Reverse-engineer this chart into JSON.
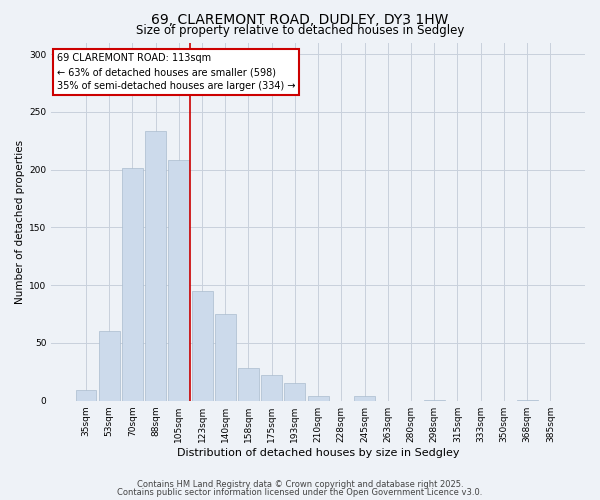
{
  "title": "69, CLAREMONT ROAD, DUDLEY, DY3 1HW",
  "subtitle": "Size of property relative to detached houses in Sedgley",
  "xlabel": "Distribution of detached houses by size in Sedgley",
  "ylabel": "Number of detached properties",
  "bar_color": "#ccdaeb",
  "bar_edge_color": "#aabcce",
  "background_color": "#eef2f7",
  "categories": [
    "35sqm",
    "53sqm",
    "70sqm",
    "88sqm",
    "105sqm",
    "123sqm",
    "140sqm",
    "158sqm",
    "175sqm",
    "193sqm",
    "210sqm",
    "228sqm",
    "245sqm",
    "263sqm",
    "280sqm",
    "298sqm",
    "315sqm",
    "333sqm",
    "350sqm",
    "368sqm",
    "385sqm"
  ],
  "values": [
    9,
    60,
    201,
    233,
    208,
    95,
    75,
    28,
    22,
    15,
    4,
    0,
    4,
    0,
    0,
    1,
    0,
    0,
    0,
    1,
    0
  ],
  "ylim": [
    0,
    310
  ],
  "yticks": [
    0,
    50,
    100,
    150,
    200,
    250,
    300
  ],
  "vline_x": 4.5,
  "vline_color": "#cc0000",
  "annotation_text": "69 CLAREMONT ROAD: 113sqm\n← 63% of detached houses are smaller (598)\n35% of semi-detached houses are larger (334) →",
  "annotation_box_color": "#ffffff",
  "annotation_box_edge_color": "#cc0000",
  "footer_line1": "Contains HM Land Registry data © Crown copyright and database right 2025.",
  "footer_line2": "Contains public sector information licensed under the Open Government Licence v3.0.",
  "grid_color": "#c8d0dc",
  "title_fontsize": 10,
  "subtitle_fontsize": 8.5,
  "xlabel_fontsize": 8,
  "ylabel_fontsize": 7.5,
  "tick_fontsize": 6.5,
  "annot_fontsize": 7,
  "footer_fontsize": 6
}
